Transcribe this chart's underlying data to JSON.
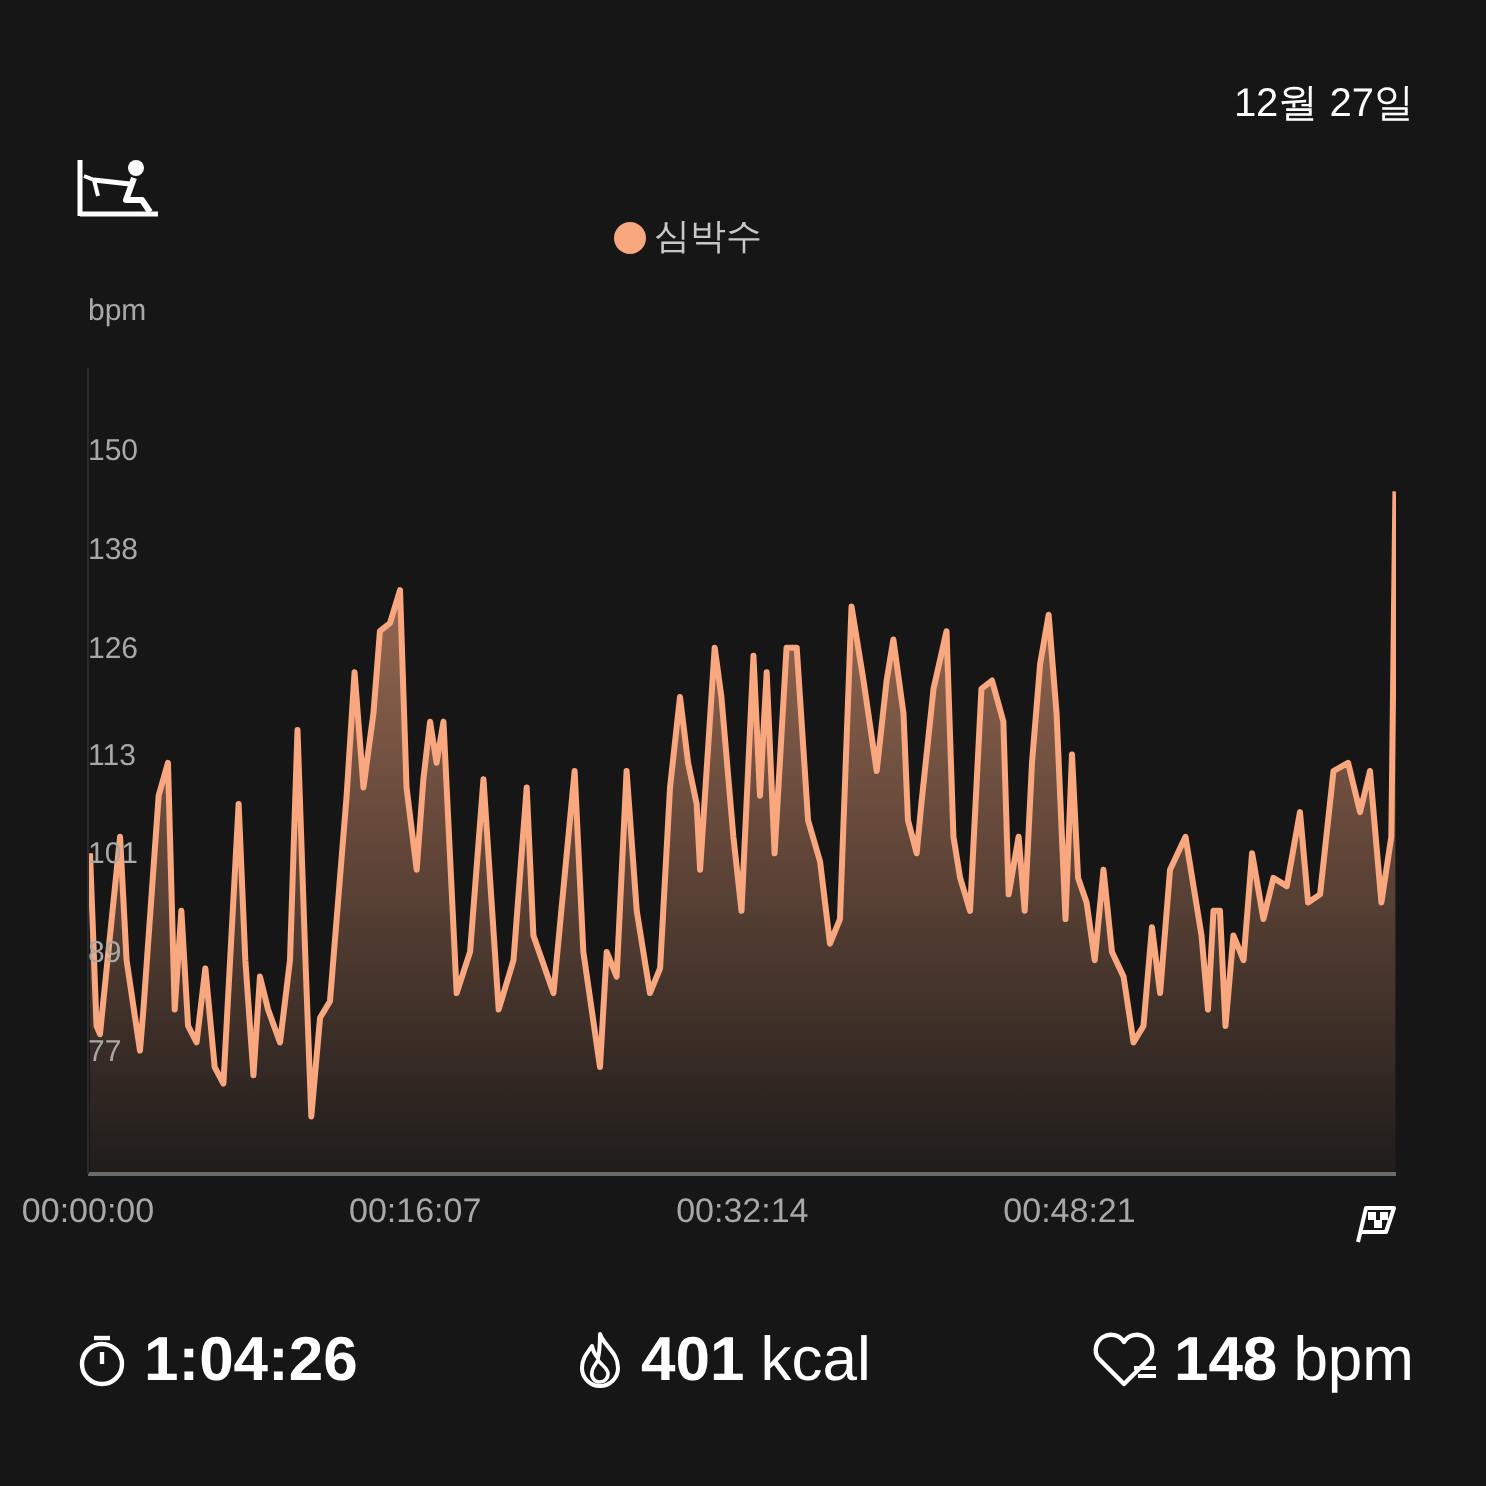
{
  "chart_data": {
    "type": "area",
    "ylabel": "bpm",
    "legend": "top",
    "marker": "none",
    "xlim": [
      0,
      64.43
    ],
    "xticks": [
      {
        "value": 0,
        "label": "00:00:00"
      },
      {
        "value": 16.117,
        "label": "00:16:07"
      },
      {
        "value": 32.233,
        "label": "00:32:14"
      },
      {
        "value": 48.35,
        "label": "00:48:21"
      }
    ],
    "ylim": [
      62,
      160
    ],
    "yticks": [
      77,
      89,
      101,
      113,
      126,
      138,
      150
    ],
    "annotations": [
      "12월 27일",
      "1:04:26",
      "401 kcal",
      "148 bpm"
    ],
    "series": [
      {
        "name": "심박수",
        "color": "#f9a77e",
        "x": [
          0.1,
          0.42,
          0.59,
          1.58,
          1.9,
          2.56,
          2.73,
          3.48,
          3.94,
          4.27,
          4.6,
          4.93,
          5.35,
          5.78,
          6.24,
          6.67,
          7,
          7.42,
          7.75,
          8.15,
          8.47,
          8.87,
          9.46,
          9.95,
          10.32,
          10.71,
          11,
          11.43,
          11.92,
          12.74,
          13.13,
          13.57,
          14.06,
          14.38,
          14.88,
          15.37,
          15.69,
          16.19,
          16.52,
          16.85,
          17.17,
          17.51,
          18.16,
          18.82,
          19.48,
          20.23,
          20.96,
          21.61,
          21.94,
          22.93,
          23.97,
          24.4,
          25.22,
          25.55,
          26.04,
          26.53,
          27.03,
          27.68,
          28.18,
          28.67,
          29.16,
          29.56,
          29.98,
          30.15,
          30.87,
          31.2,
          31.79,
          32.19,
          32.78,
          33.1,
          33.43,
          33.82,
          34.41,
          34.91,
          35.47,
          36.06,
          36.55,
          37.04,
          37.61,
          38.2,
          38.85,
          39.34,
          39.67,
          40.17,
          40.39,
          40.82,
          41.05,
          41.65,
          42.29,
          42.63,
          42.96,
          43.45,
          44.01,
          44.53,
          45.09,
          45.35,
          45.84,
          46.14,
          46.5,
          46.9,
          47.32,
          47.71,
          48.15,
          48.47,
          48.77,
          49.19,
          49.59,
          50.02,
          50.44,
          51.01,
          51.5,
          51.99,
          52.41,
          52.81,
          53.3,
          54.06,
          54.85,
          55.17,
          55.44,
          55.76,
          56.03,
          56.42,
          56.92,
          57.34,
          57.9,
          58.39,
          59.05,
          59.7,
          60.1,
          60.69,
          61.35,
          62.07,
          62.66,
          63.15,
          63.71,
          64.2,
          64.4
        ],
        "values": [
          101,
          80,
          79,
          103,
          88,
          77,
          82,
          108,
          112,
          82,
          94,
          80,
          78,
          87,
          75,
          73,
          88,
          107,
          88,
          74,
          86,
          82,
          78,
          88,
          116,
          88,
          69,
          81,
          83,
          108,
          123,
          109,
          118,
          128,
          129,
          133,
          109,
          99,
          110,
          117,
          112,
          117,
          84,
          89,
          110,
          82,
          88,
          109,
          91,
          84,
          111,
          89,
          75,
          89,
          86,
          111,
          94,
          84,
          87,
          109,
          120,
          112,
          107,
          99,
          126,
          120,
          103,
          94,
          125,
          108,
          123,
          101,
          126,
          126,
          105,
          100,
          90,
          93,
          131,
          122,
          111,
          122,
          127,
          118,
          105,
          101,
          107,
          121,
          128,
          103,
          98,
          94,
          121,
          122,
          117,
          96,
          103,
          94,
          112,
          124,
          130,
          118,
          93,
          113,
          98,
          95,
          88,
          99,
          89,
          86,
          78,
          80,
          92,
          84,
          99,
          103,
          91,
          82,
          94,
          94,
          80,
          91,
          88,
          101,
          93,
          98,
          97,
          106,
          95,
          96,
          111,
          112,
          106,
          111,
          95,
          103,
          145
        ]
      }
    ]
  }
}
